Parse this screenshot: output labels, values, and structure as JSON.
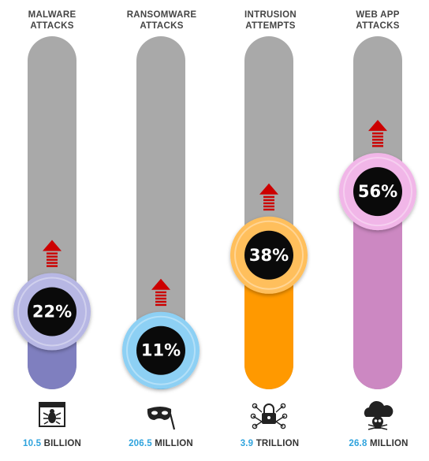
{
  "chart_data": {
    "type": "bar",
    "categories": [
      {
        "line1": "MALWARE",
        "line2": "ATTACKS"
      },
      {
        "line1": "RANSOMWARE",
        "line2": "ATTACKS"
      },
      {
        "line1": "INTRUSION",
        "line2": "ATTEMPTS"
      },
      {
        "line1": "WEB APP",
        "line2": "ATTACKS"
      }
    ],
    "values": [
      22,
      11,
      38,
      56
    ],
    "value_labels": [
      "22%",
      "11%",
      "38%",
      "56%"
    ],
    "ylim": [
      0,
      100
    ],
    "stats": [
      {
        "number": "10.5",
        "unit": "BILLION"
      },
      {
        "number": "206.5",
        "unit": "MILLION"
      },
      {
        "number": "3.9",
        "unit": "TRILLION"
      },
      {
        "number": "26.8",
        "unit": "MILLION"
      }
    ],
    "icons": [
      "bug-window-icon",
      "mask-icon",
      "lock-network-icon",
      "cloud-skull-icon"
    ],
    "colors": {
      "track": "#a9a9a9",
      "fills": [
        "#7f7fbf",
        "#3aa7e0",
        "#ff9900",
        "#cc88c2"
      ],
      "rings": [
        "#b7b7e4",
        "#8dd0f4",
        "#ffbf5c",
        "#f1b6e8"
      ],
      "arrow": "#cc0000",
      "inner": "#0a0a0a"
    },
    "trend": "up"
  }
}
